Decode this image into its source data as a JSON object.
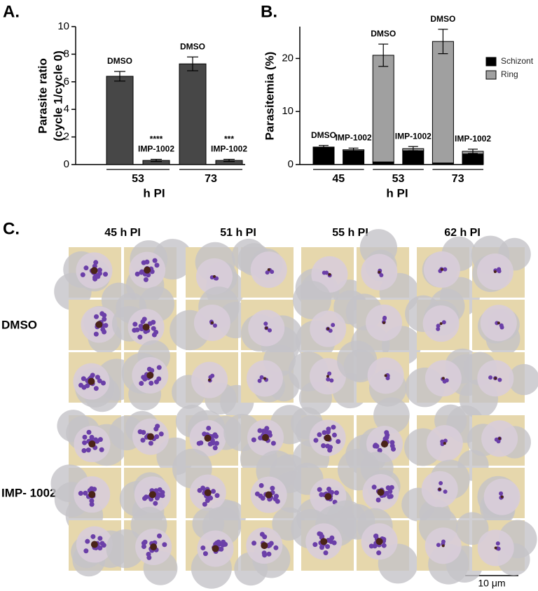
{
  "chart_data": [
    {
      "type": "bar",
      "panel_label": "A.",
      "y_label": [
        "Parasite ratio",
        "(cycle 1/cycle 0)"
      ],
      "x_label": "h PI",
      "categories": [
        "DMSO",
        "IMP-1002",
        "DMSO",
        "IMP-1002"
      ],
      "groups": [
        "53",
        "73"
      ],
      "values": [
        6.4,
        0.3,
        7.3,
        0.3
      ],
      "errors": [
        0.35,
        0.08,
        0.5,
        0.08
      ],
      "significance": [
        null,
        "****",
        null,
        "***"
      ],
      "color": "#474747",
      "ylim": [
        0,
        10
      ],
      "yticks": [
        0,
        2,
        4,
        6,
        8,
        10
      ]
    },
    {
      "type": "stacked_bar",
      "panel_label": "B.",
      "y_label": "Parasitemia (%)",
      "x_label": "h PI",
      "categories": [
        "DMSO",
        "IMP-1002",
        "DMSO",
        "IMP-1002",
        "DMSO",
        "IMP-1002"
      ],
      "groups": [
        "45",
        "53",
        "73"
      ],
      "series": [
        {
          "name": "Schizont",
          "color": "#000000",
          "values": [
            3.2,
            2.6,
            0.5,
            2.6,
            0.3,
            2.0
          ]
        },
        {
          "name": "Ring",
          "color": "#a0a0a0",
          "values": [
            0.1,
            0.2,
            20.1,
            0.4,
            22.9,
            0.5
          ],
          "errors": [
            0.3,
            0.3,
            2.1,
            0.4,
            2.3,
            0.4
          ]
        }
      ],
      "ylim": [
        0,
        26
      ],
      "yticks": [
        0,
        10,
        20
      ]
    }
  ],
  "panel_c": {
    "panel_label": "C.",
    "columns": [
      "45 h PI",
      "51 h PI",
      "55 h PI",
      "62 h PI"
    ],
    "rows": [
      "DMSO",
      "IMP- 1002"
    ],
    "scale_bar": "10 μm"
  }
}
